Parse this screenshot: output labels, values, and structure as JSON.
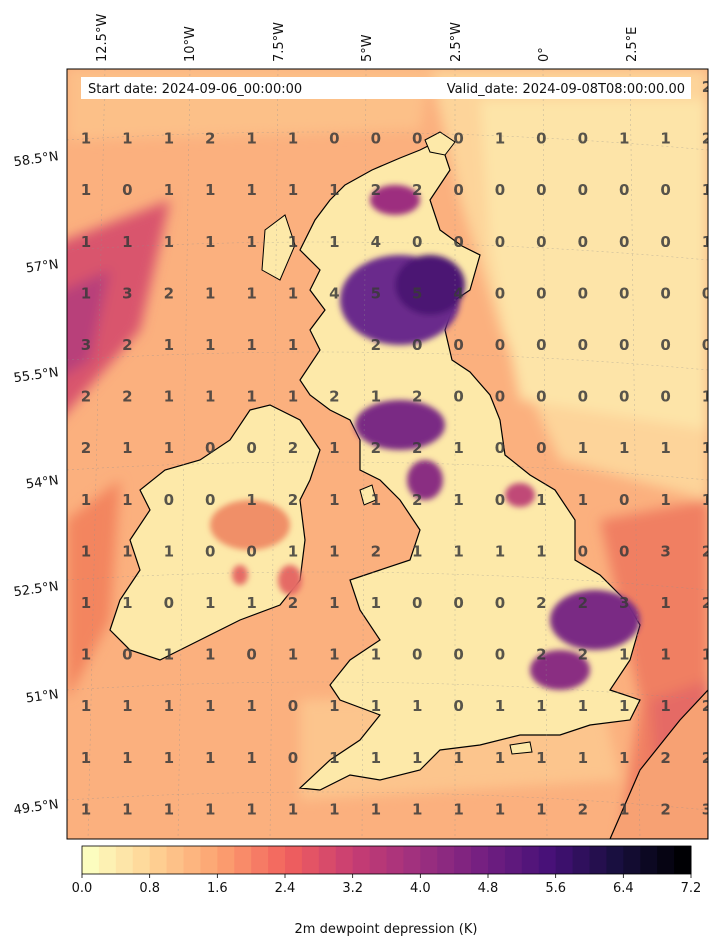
{
  "map": {
    "start_date": "Start date: 2024-09-06_00:00:00",
    "valid_date": "Valid_date: 2024-09-08T08:00:00.00",
    "lon_labels": [
      "12.5°W",
      "10°W",
      "7.5°W",
      "5°W",
      "2.5°W",
      "0°",
      "2.5°E"
    ],
    "lat_labels": [
      "58.5°N",
      "57°N",
      "55.5°N",
      "54°N",
      "52.5°N",
      "51°N",
      "49.5°N"
    ],
    "grid_values": [
      [
        "",
        "",
        "",
        "",
        "",
        "",
        "",
        "",
        "",
        "",
        "",
        "",
        "",
        "",
        "",
        "2"
      ],
      [
        "1",
        "1",
        "1",
        "2",
        "1",
        "1",
        "0",
        "0",
        "0",
        "0",
        "1",
        "0",
        "0",
        "1",
        "1",
        "2"
      ],
      [
        "1",
        "0",
        "1",
        "1",
        "1",
        "1",
        "1",
        "2",
        "2",
        "0",
        "0",
        "0",
        "0",
        "0",
        "0",
        "1"
      ],
      [
        "1",
        "1",
        "1",
        "1",
        "1",
        "1",
        "1",
        "4",
        "0",
        "0",
        "0",
        "0",
        "0",
        "0",
        "0",
        "1"
      ],
      [
        "1",
        "3",
        "2",
        "1",
        "1",
        "1",
        "4",
        "5",
        "5",
        "4",
        "0",
        "0",
        "0",
        "0",
        "0",
        "0"
      ],
      [
        "3",
        "2",
        "1",
        "1",
        "1",
        "1",
        "",
        "2",
        "0",
        "0",
        "0",
        "0",
        "0",
        "0",
        "0",
        "0"
      ],
      [
        "2",
        "2",
        "1",
        "1",
        "1",
        "1",
        "2",
        "1",
        "2",
        "0",
        "0",
        "0",
        "0",
        "0",
        "0",
        "1"
      ],
      [
        "2",
        "1",
        "1",
        "0",
        "0",
        "2",
        "1",
        "2",
        "2",
        "1",
        "0",
        "0",
        "1",
        "1",
        "1",
        "1"
      ],
      [
        "1",
        "1",
        "0",
        "0",
        "1",
        "2",
        "1",
        "1",
        "2",
        "1",
        "0",
        "1",
        "1",
        "0",
        "1",
        "1"
      ],
      [
        "1",
        "1",
        "1",
        "0",
        "0",
        "1",
        "1",
        "2",
        "1",
        "1",
        "1",
        "1",
        "0",
        "0",
        "3",
        "2"
      ],
      [
        "1",
        "1",
        "0",
        "1",
        "1",
        "2",
        "1",
        "1",
        "0",
        "0",
        "0",
        "2",
        "2",
        "3",
        "1",
        "2"
      ],
      [
        "1",
        "0",
        "1",
        "1",
        "0",
        "1",
        "1",
        "1",
        "0",
        "0",
        "0",
        "2",
        "2",
        "1",
        "1",
        "1"
      ],
      [
        "1",
        "1",
        "1",
        "1",
        "1",
        "0",
        "1",
        "1",
        "1",
        "0",
        "1",
        "1",
        "1",
        "1",
        "1",
        "2"
      ],
      [
        "1",
        "1",
        "1",
        "1",
        "1",
        "0",
        "1",
        "1",
        "1",
        "1",
        "1",
        "1",
        "1",
        "1",
        "2",
        "2"
      ],
      [
        "1",
        "1",
        "1",
        "1",
        "1",
        "1",
        "1",
        "1",
        "1",
        "1",
        "1",
        "1",
        "2",
        "1",
        "2",
        "3"
      ]
    ]
  },
  "colorbar": {
    "title": "2m dewpoint depression (K)",
    "ticks": [
      "0.0",
      "0.8",
      "1.6",
      "2.4",
      "3.2",
      "4.0",
      "4.8",
      "5.6",
      "6.4",
      "7.2"
    ],
    "min": 0,
    "max": 7.2,
    "levels": 36,
    "colors": [
      "#fcfdbf",
      "#fecf92",
      "#fc9f6f",
      "#f1605d",
      "#c73d73",
      "#9d2f7f",
      "#721f81",
      "#451077",
      "#180f3e",
      "#000004"
    ]
  },
  "palette": {
    "land_light": "#fde9a9",
    "sea_base": "#fbb07e",
    "sea_dark": "#c84a76",
    "purple": "#6a2b8c"
  }
}
